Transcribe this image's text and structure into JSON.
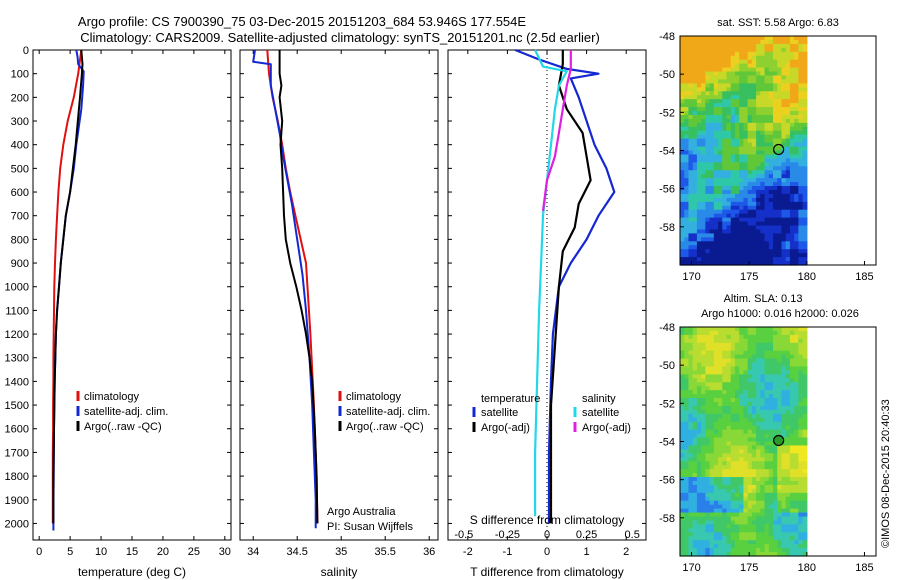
{
  "header": {
    "line1": "Argo profile: CS 7900390_75 03-Dec-2015 20151203_684 53.946S 177.554E",
    "line2": "Climatology: CARS2009. Satellite-adjusted climatology: synTS_20151201.nc (2.5d earlier)"
  },
  "colors": {
    "climatology": "#e01010",
    "satellite": "#1428d2",
    "argo": "#000000",
    "satellite_s": "#22d8e8",
    "argo_s": "#e020e0"
  },
  "chart_data": [
    {
      "type": "line",
      "panel": "temperature",
      "xlabel": "temperature (deg C)",
      "ylabel": "",
      "xlim": [
        -1,
        31
      ],
      "ylim": [
        2070,
        0
      ],
      "xticks": [
        0,
        5,
        10,
        15,
        20,
        25,
        30
      ],
      "yticks": [
        0,
        100,
        200,
        300,
        400,
        500,
        600,
        700,
        800,
        900,
        1000,
        1100,
        1200,
        1300,
        1400,
        1500,
        1600,
        1700,
        1800,
        1900,
        2000
      ],
      "legend": [
        "climatology",
        "satellite-adj. clim.",
        "Argo(..raw -QC)"
      ],
      "series": [
        {
          "name": "climatology",
          "color": "#e01010",
          "x": [
            6.8,
            6.3,
            5.6,
            4.6,
            3.9,
            3.4,
            3.1,
            2.9,
            2.7,
            2.55,
            2.45,
            2.4,
            2.35,
            2.3,
            2.3,
            2.25,
            2.25,
            2.2,
            2.2,
            2.2,
            2.2
          ],
          "y": [
            0,
            100,
            200,
            300,
            400,
            500,
            600,
            700,
            800,
            900,
            1000,
            1100,
            1200,
            1300,
            1400,
            1500,
            1600,
            1700,
            1800,
            1900,
            2000
          ]
        },
        {
          "name": "satellite-adj. clim.",
          "color": "#1428d2",
          "x": [
            6.0,
            6.2,
            6.3,
            7.2,
            7.1,
            6.8,
            6.0,
            5.6,
            5.0,
            4.3,
            3.9,
            3.5,
            3.2,
            2.9,
            2.7,
            2.6,
            2.5,
            2.4,
            2.35,
            2.3,
            2.3
          ],
          "y": [
            0,
            30,
            60,
            90,
            150,
            250,
            400,
            500,
            600,
            700,
            800,
            900,
            1000,
            1100,
            1200,
            1300,
            1400,
            1600,
            1800,
            1900,
            2030
          ]
        },
        {
          "name": "Argo(..raw -QC)",
          "color": "#000000",
          "x": [
            6.8,
            6.9,
            7.0,
            6.9,
            6.6,
            5.9,
            5.0,
            4.3,
            3.9,
            3.5,
            3.2,
            2.9,
            2.7,
            2.5,
            2.4,
            2.3,
            2.3
          ],
          "y": [
            0,
            30,
            60,
            100,
            200,
            400,
            600,
            700,
            800,
            900,
            1000,
            1100,
            1200,
            1400,
            1600,
            1800,
            2000
          ]
        }
      ]
    },
    {
      "type": "line",
      "panel": "salinity",
      "xlabel": "salinity",
      "ylabel": "",
      "xlim": [
        33.85,
        36.1
      ],
      "ylim": [
        2070,
        0
      ],
      "xticks": [
        34,
        34.5,
        35,
        35.5,
        36
      ],
      "legend": [
        "climatology",
        "satellite-adj. clim.",
        "Argo(..raw -QC)"
      ],
      "series": [
        {
          "name": "climatology",
          "color": "#e01010",
          "x": [
            34.16,
            34.18,
            34.22,
            34.28,
            34.33,
            34.37,
            34.42,
            34.48,
            34.54,
            34.6,
            34.65,
            34.69,
            34.72,
            34.73
          ],
          "y": [
            0,
            100,
            200,
            300,
            400,
            500,
            600,
            700,
            800,
            900,
            1200,
            1500,
            1800,
            2000
          ]
        },
        {
          "name": "satellite-adj. clim.",
          "color": "#1428d2",
          "x": [
            34.02,
            34.0,
            34.2,
            34.2,
            34.2,
            34.25,
            34.3,
            34.34,
            34.39,
            34.44,
            34.48,
            34.52,
            34.56,
            34.6,
            34.64,
            34.67,
            34.69,
            34.71,
            34.71
          ],
          "y": [
            0,
            50,
            60,
            80,
            150,
            250,
            350,
            450,
            550,
            650,
            750,
            850,
            950,
            1100,
            1300,
            1500,
            1700,
            1900,
            2020
          ]
        },
        {
          "name": "Argo(..raw -QC)",
          "color": "#000000",
          "x": [
            34.3,
            34.3,
            34.32,
            34.3,
            34.33,
            34.31,
            34.33,
            34.34,
            34.35,
            34.37,
            34.42,
            34.49,
            34.55,
            34.6,
            34.64,
            34.67,
            34.7,
            34.72,
            34.73
          ],
          "y": [
            0,
            100,
            150,
            200,
            300,
            400,
            500,
            600,
            700,
            800,
            900,
            1000,
            1100,
            1200,
            1300,
            1400,
            1600,
            1800,
            2000
          ]
        }
      ]
    },
    {
      "type": "line",
      "panel": "differences",
      "xlabel": "T difference from climatology",
      "xlabel_top": "S difference from climatology",
      "xlim": [
        -2.5,
        2.5
      ],
      "ylim": [
        2070,
        0
      ],
      "xticks": [
        -2,
        -1,
        0,
        1,
        2
      ],
      "sticks": [
        -0.5,
        -0.25,
        0,
        0.25,
        0.5
      ],
      "legend_titles": [
        "temperature",
        "salinity"
      ],
      "legend": [
        "satellite",
        "Argo(-adj)",
        "satellite",
        "Argo(-adj)"
      ],
      "series": [
        {
          "name": "satellite",
          "color": "#1428d2",
          "x": [
            -0.8,
            -0.2,
            0.5,
            1.3,
            0.6,
            0.8,
            1.0,
            1.2,
            1.5,
            1.7,
            1.3,
            1.0,
            0.6,
            0.3,
            0.15,
            0.1,
            0.05,
            0.05
          ],
          "y": [
            0,
            40,
            80,
            100,
            120,
            200,
            300,
            400,
            500,
            600,
            700,
            800,
            900,
            1000,
            1200,
            1400,
            1700,
            2000
          ]
        },
        {
          "name": "Argo(-adj)",
          "color": "#000000",
          "x": [
            0.4,
            0.4,
            0.3,
            0.5,
            0.9,
            1.0,
            1.1,
            0.8,
            0.7,
            0.4,
            0.3,
            0.1,
            0.1
          ],
          "y": [
            0,
            60,
            150,
            250,
            350,
            450,
            550,
            650,
            750,
            850,
            1000,
            1500,
            2000
          ]
        },
        {
          "name": "satellite",
          "color": "#22d8e8",
          "x": [
            -0.3,
            -0.1,
            0.5,
            0.3,
            0.2,
            0.1,
            0.0,
            -0.1,
            -0.15,
            -0.2,
            -0.25,
            -0.3,
            -0.3
          ],
          "y": [
            0,
            70,
            90,
            150,
            250,
            400,
            550,
            700,
            900,
            1100,
            1400,
            1700,
            1970
          ]
        },
        {
          "name": "Argo(-adj)",
          "color": "#e020e0",
          "x": [
            0.6,
            0.6,
            0.5,
            0.4,
            0.3,
            0.2,
            0.0,
            -0.1
          ],
          "y": [
            0,
            80,
            150,
            250,
            350,
            450,
            550,
            680
          ]
        }
      ]
    },
    {
      "type": "heatmap",
      "panel": "sst-map",
      "title": "sat. SST: 5.58 Argo: 6.83",
      "xlim": [
        169,
        186
      ],
      "ylim": [
        -60,
        -48
      ],
      "xticks": [
        170,
        175,
        180,
        185
      ],
      "yticks": [
        -48,
        -50,
        -52,
        -54,
        -56,
        -58
      ],
      "marker": {
        "lon": 177.554,
        "lat": -53.946
      },
      "data_extent": [
        169,
        180
      ]
    },
    {
      "type": "heatmap",
      "panel": "sla-map",
      "title_line1": "Altim. SLA: 0.13",
      "title_line2": "Argo h1000: 0.016 h2000: 0.026",
      "xlim": [
        169,
        186
      ],
      "ylim": [
        -60,
        -48
      ],
      "xticks": [
        170,
        175,
        180,
        185
      ],
      "yticks": [
        -48,
        -50,
        -52,
        -54,
        -56,
        -58
      ],
      "marker": {
        "lon": 177.554,
        "lat": -53.946
      },
      "data_extent": [
        169,
        180
      ]
    }
  ],
  "annotations": {
    "pi_line1": "Argo Australia",
    "pi_line2": "PI: Susan Wijffels",
    "footer": "©IMOS 08-Dec-2015 20:40:33"
  }
}
